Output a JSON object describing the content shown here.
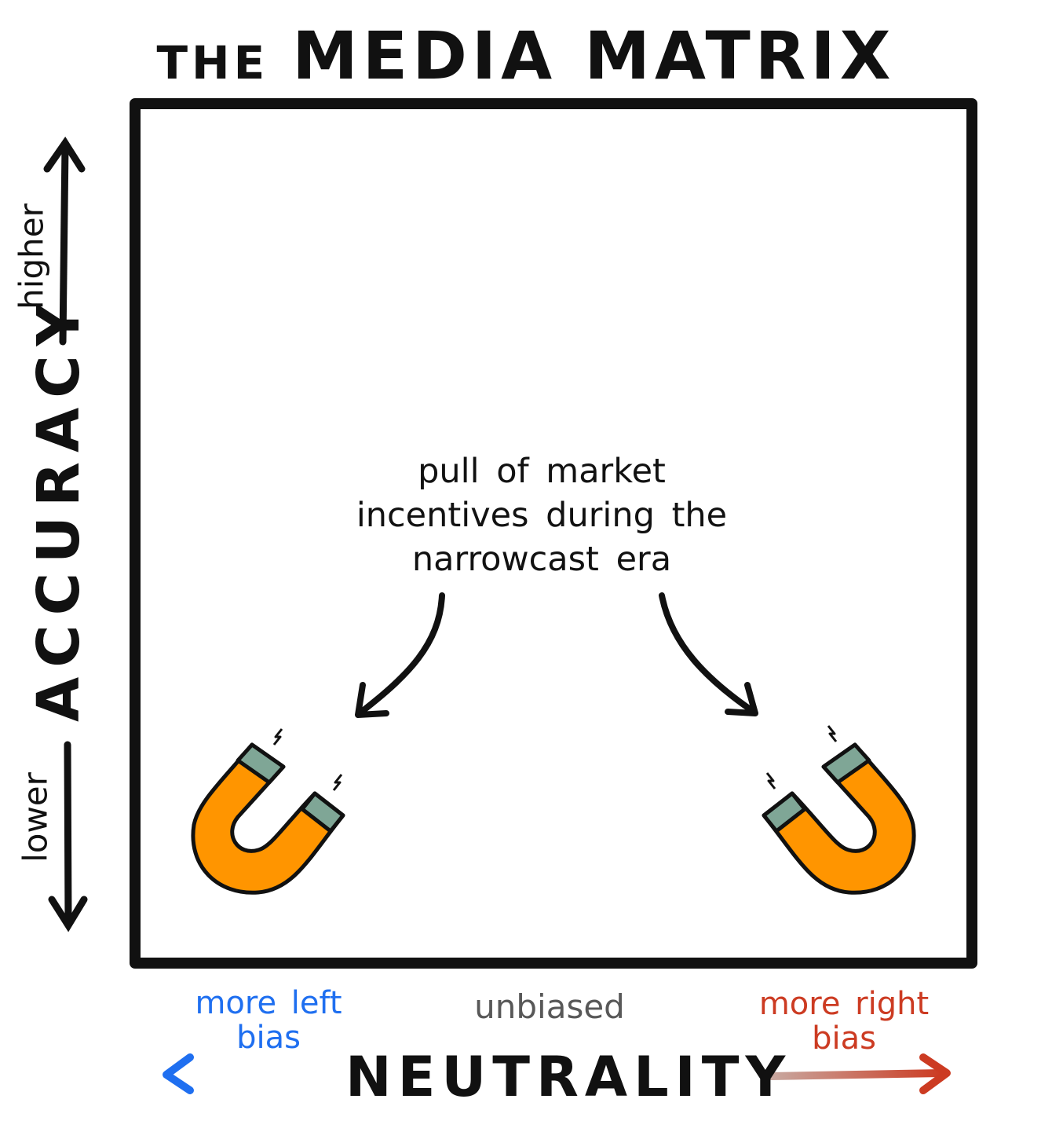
{
  "title": {
    "prefix": "THE",
    "main": "MEDIA MATRIX"
  },
  "y_axis": {
    "label": "ACCURACY",
    "high": "higher",
    "low": "lower"
  },
  "x_axis": {
    "label": "NEUTRALITY",
    "left": "more left bias",
    "center": "unbiased",
    "right": "more right bias"
  },
  "annotation": "pull of market incentives during the narrowcast era",
  "colors": {
    "left_bias": "#1f6ff0",
    "right_bias": "#cc3b22",
    "neutral": "#585858",
    "magnet_body": "#ff9500",
    "magnet_tip": "#7fa696"
  },
  "icons": [
    "magnet-icon",
    "magnet-icon"
  ]
}
